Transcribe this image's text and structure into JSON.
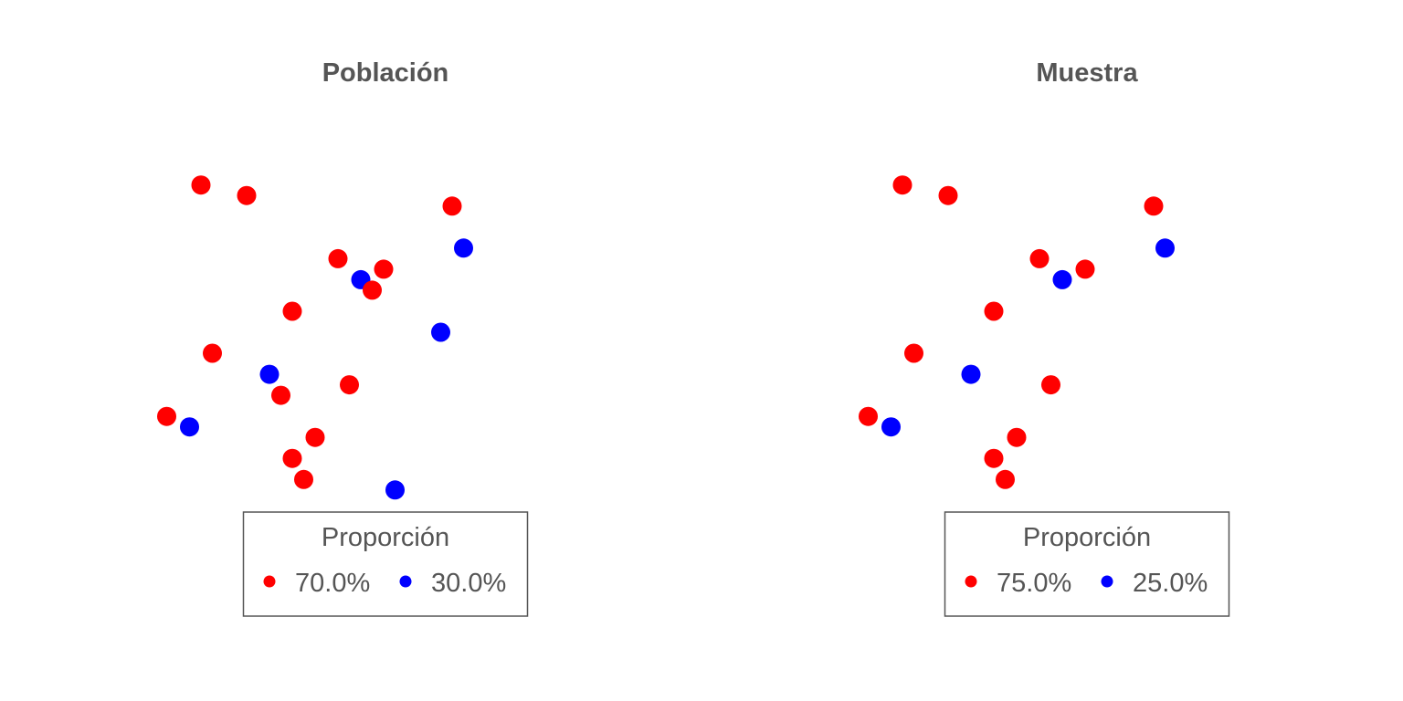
{
  "chart_data": [
    {
      "type": "scatter",
      "title": "Población",
      "xlim": [
        0,
        1
      ],
      "ylim": [
        0,
        1
      ],
      "axes_visible": false,
      "grid": false,
      "legend": {
        "title": "Proporción",
        "placement": "bottom",
        "entries": [
          {
            "label": "70.0%",
            "color": "#ff0000"
          },
          {
            "label": "30.0%",
            "color": "#0000ff"
          }
        ]
      },
      "points": [
        {
          "x": 0.12,
          "y": 0.92,
          "color": "#ff0000"
        },
        {
          "x": 0.22,
          "y": 0.89,
          "color": "#ff0000"
        },
        {
          "x": 0.67,
          "y": 0.86,
          "color": "#ff0000"
        },
        {
          "x": 0.695,
          "y": 0.74,
          "color": "#0000ff"
        },
        {
          "x": 0.42,
          "y": 0.71,
          "color": "#ff0000"
        },
        {
          "x": 0.52,
          "y": 0.68,
          "color": "#ff0000"
        },
        {
          "x": 0.47,
          "y": 0.65,
          "color": "#0000ff"
        },
        {
          "x": 0.495,
          "y": 0.62,
          "color": "#ff0000"
        },
        {
          "x": 0.32,
          "y": 0.56,
          "color": "#ff0000"
        },
        {
          "x": 0.645,
          "y": 0.5,
          "color": "#0000ff"
        },
        {
          "x": 0.145,
          "y": 0.44,
          "color": "#ff0000"
        },
        {
          "x": 0.27,
          "y": 0.38,
          "color": "#0000ff"
        },
        {
          "x": 0.445,
          "y": 0.35,
          "color": "#ff0000"
        },
        {
          "x": 0.295,
          "y": 0.32,
          "color": "#ff0000"
        },
        {
          "x": 0.045,
          "y": 0.26,
          "color": "#ff0000"
        },
        {
          "x": 0.095,
          "y": 0.23,
          "color": "#0000ff"
        },
        {
          "x": 0.37,
          "y": 0.2,
          "color": "#ff0000"
        },
        {
          "x": 0.32,
          "y": 0.14,
          "color": "#ff0000"
        },
        {
          "x": 0.345,
          "y": 0.08,
          "color": "#ff0000"
        },
        {
          "x": 0.545,
          "y": 0.05,
          "color": "#0000ff"
        }
      ]
    },
    {
      "type": "scatter",
      "title": "Muestra",
      "xlim": [
        0,
        1
      ],
      "ylim": [
        0,
        1
      ],
      "axes_visible": false,
      "grid": false,
      "legend": {
        "title": "Proporción",
        "placement": "bottom",
        "entries": [
          {
            "label": "75.0%",
            "color": "#ff0000"
          },
          {
            "label": "25.0%",
            "color": "#0000ff"
          }
        ]
      },
      "points": [
        {
          "x": 0.12,
          "y": 0.92,
          "color": "#ff0000"
        },
        {
          "x": 0.22,
          "y": 0.89,
          "color": "#ff0000"
        },
        {
          "x": 0.67,
          "y": 0.86,
          "color": "#ff0000"
        },
        {
          "x": 0.695,
          "y": 0.74,
          "color": "#0000ff"
        },
        {
          "x": 0.42,
          "y": 0.71,
          "color": "#ff0000"
        },
        {
          "x": 0.52,
          "y": 0.68,
          "color": "#ff0000"
        },
        {
          "x": 0.47,
          "y": 0.65,
          "color": "#0000ff"
        },
        {
          "x": 0.32,
          "y": 0.56,
          "color": "#ff0000"
        },
        {
          "x": 0.145,
          "y": 0.44,
          "color": "#ff0000"
        },
        {
          "x": 0.27,
          "y": 0.38,
          "color": "#0000ff"
        },
        {
          "x": 0.445,
          "y": 0.35,
          "color": "#ff0000"
        },
        {
          "x": 0.045,
          "y": 0.26,
          "color": "#ff0000"
        },
        {
          "x": 0.095,
          "y": 0.23,
          "color": "#0000ff"
        },
        {
          "x": 0.37,
          "y": 0.2,
          "color": "#ff0000"
        },
        {
          "x": 0.32,
          "y": 0.14,
          "color": "#ff0000"
        },
        {
          "x": 0.345,
          "y": 0.08,
          "color": "#ff0000"
        }
      ]
    }
  ]
}
